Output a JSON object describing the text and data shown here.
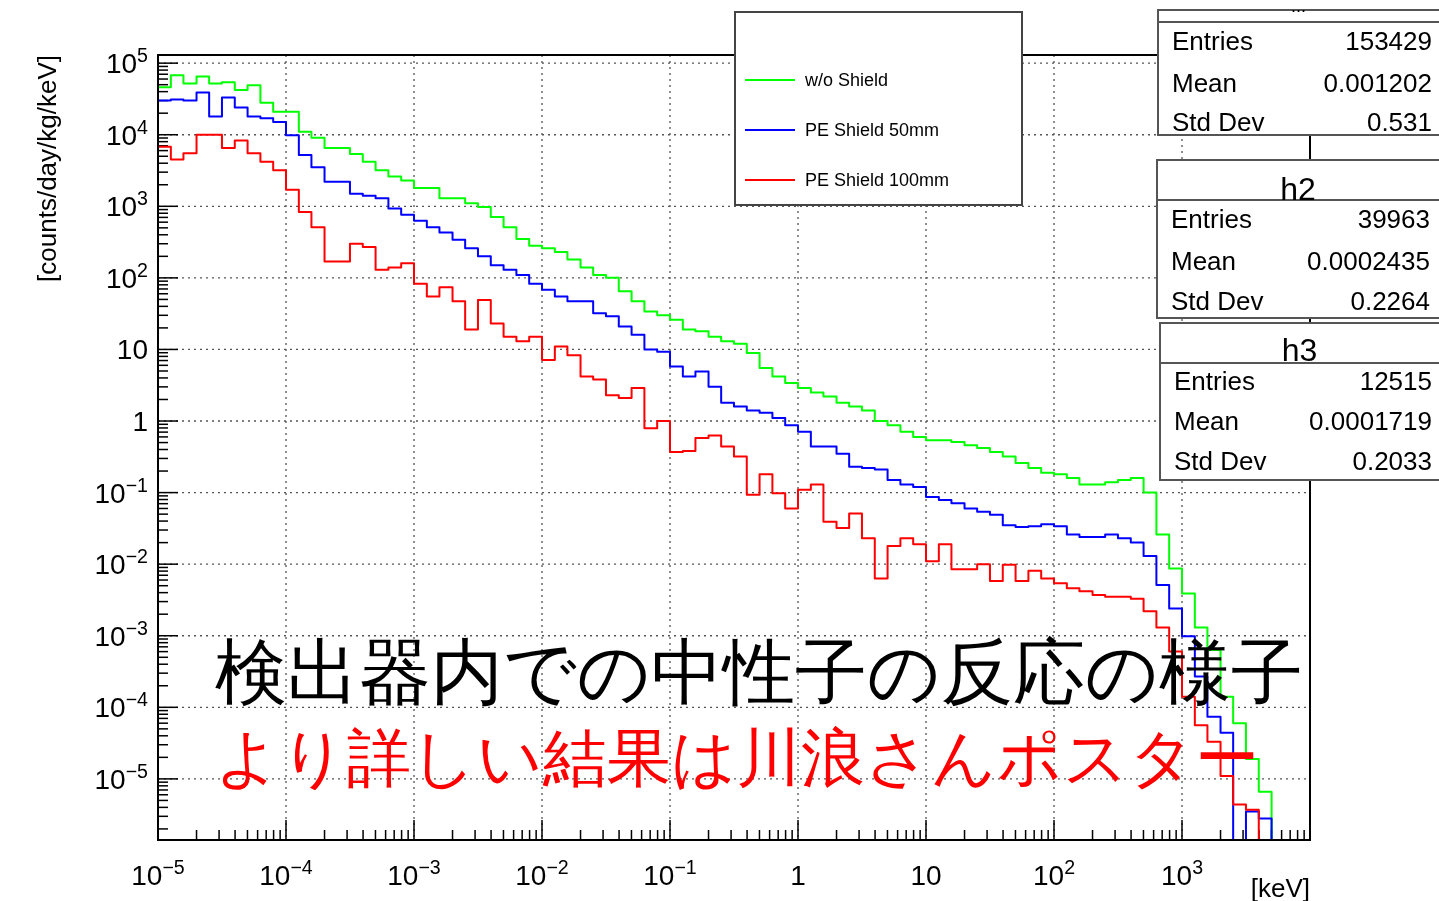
{
  "chart_data": {
    "type": "histogram",
    "log": "xy",
    "grid": true,
    "legend": "top right",
    "xlabel": "[keV]",
    "ylabel": "[counts/day/kg/keV]",
    "xlim": [
      1e-05,
      10000
    ],
    "ylim": [
      1.4e-06,
      130000
    ],
    "xticks": [
      {
        "value": 1e-05,
        "label": "10$^{−5}$"
      },
      {
        "value": 0.0001,
        "label": "10$^{−4}$"
      },
      {
        "value": 0.001,
        "label": "10$^{−3}$"
      },
      {
        "value": 0.01,
        "label": "10$^{−2}$"
      },
      {
        "value": 0.1,
        "label": "10$^{−1}$"
      },
      1,
      10,
      {
        "value": 100,
        "label": "10$^{2}$"
      },
      {
        "value": 1000,
        "label": "10$^{3}$"
      }
    ],
    "yticks": [
      {
        "value": 1e-05,
        "label": "10$^{−5}$"
      },
      {
        "value": 0.0001,
        "label": "10$^{−4}$"
      },
      {
        "value": 0.001,
        "label": "10$^{−3}$"
      },
      {
        "value": 0.01,
        "label": "10$^{−2}$"
      },
      {
        "value": 0.1,
        "label": "10$^{−1}$"
      },
      1,
      10,
      {
        "value": 100,
        "label": "10$^{2}$"
      },
      {
        "value": 1000,
        "label": "10$^{3}$"
      },
      {
        "value": 10000,
        "label": "10$^{4}$"
      },
      {
        "value": 100000,
        "label": "10$^{5}$"
      }
    ],
    "bins": [
      1e-05,
      1.26e-05,
      1.58e-05,
      2e-05,
      2.51e-05,
      3.16e-05,
      3.98e-05,
      5.01e-05,
      6.31e-05,
      7.94e-05,
      0.0001,
      0.000126,
      0.000158,
      0.0002,
      0.000251,
      0.000316,
      0.000398,
      0.000501,
      0.000631,
      0.000794,
      0.001,
      0.00126,
      0.00158,
      0.002,
      0.00251,
      0.00316,
      0.00398,
      0.00501,
      0.00631,
      0.00794,
      0.01,
      0.0126,
      0.0158,
      0.02,
      0.0251,
      0.0316,
      0.0398,
      0.0501,
      0.0631,
      0.0794,
      0.1,
      0.126,
      0.158,
      0.2,
      0.251,
      0.316,
      0.398,
      0.501,
      0.631,
      0.794,
      1,
      1.26,
      1.58,
      2,
      2.51,
      3.16,
      3.98,
      5.01,
      6.31,
      7.94,
      10,
      12.6,
      15.8,
      20,
      25.1,
      31.6,
      39.8,
      50.1,
      63.1,
      79.4,
      100,
      126,
      158,
      200,
      251,
      316,
      398,
      501,
      631,
      794,
      1000,
      1260,
      1580,
      2000,
      2510,
      3160,
      3980,
      5010
    ],
    "series": [
      {
        "name": "w/o Shield",
        "color": "#00ff00",
        "values": [
          46000,
          68000,
          52000,
          65000,
          52000,
          54000,
          42000,
          49000,
          28000,
          21000,
          21000,
          11000,
          9100,
          6500,
          6500,
          5400,
          4200,
          3200,
          2600,
          2300,
          1800,
          1800,
          1300,
          1300,
          1100,
          980,
          710,
          510,
          350,
          280,
          260,
          230,
          180,
          140,
          110,
          100,
          65,
          47,
          34,
          30,
          26,
          19,
          18,
          15,
          13,
          12,
          8.9,
          5.5,
          4.2,
          3.4,
          2.9,
          2.5,
          2.2,
          1.8,
          1.6,
          1.4,
          1.0,
          0.87,
          0.71,
          0.6,
          0.54,
          0.54,
          0.51,
          0.46,
          0.42,
          0.37,
          0.32,
          0.26,
          0.22,
          0.19,
          0.18,
          0.16,
          0.13,
          0.13,
          0.14,
          0.15,
          0.16,
          0.1,
          0.026,
          0.0087,
          0.0039,
          0.0013,
          0.00063,
          0.00014,
          6e-05,
          1.9e-05,
          6.6e-06
        ]
      },
      {
        "name": "PE Shield 50mm",
        "color": "#0000ff",
        "values": [
          30000,
          31000,
          30000,
          39000,
          18000,
          33000,
          24000,
          18000,
          17000,
          15000,
          9800,
          5200,
          3500,
          2200,
          2200,
          1500,
          1400,
          1300,
          930,
          760,
          630,
          510,
          430,
          340,
          260,
          200,
          150,
          130,
          110,
          83,
          68,
          55,
          47,
          47,
          32,
          29,
          21,
          16,
          10,
          9.3,
          5.8,
          4.2,
          4.9,
          3.0,
          1.8,
          1.6,
          1.4,
          1.3,
          1.1,
          0.87,
          0.71,
          0.44,
          0.44,
          0.35,
          0.23,
          0.22,
          0.21,
          0.15,
          0.13,
          0.12,
          0.087,
          0.079,
          0.071,
          0.06,
          0.054,
          0.049,
          0.035,
          0.033,
          0.034,
          0.036,
          0.034,
          0.026,
          0.024,
          0.024,
          0.026,
          0.023,
          0.02,
          0.013,
          0.0051,
          0.0024,
          0.00098,
          0.00027,
          7.4e-05,
          4.4e-05,
          null,
          3.5e-06,
          2.8e-06
        ]
      },
      {
        "name": "PE Shield 100mm",
        "color": "#ff0000",
        "values": [
          6800,
          4500,
          5500,
          10000,
          10000,
          6500,
          8300,
          5500,
          4200,
          3200,
          1700,
          830,
          510,
          170,
          170,
          300,
          270,
          130,
          140,
          160,
          83,
          55,
          74,
          47,
          19,
          49,
          23,
          15,
          13,
          15,
          7.1,
          11,
          8.3,
          4.2,
          3.8,
          2.3,
          2.1,
          2.9,
          0.79,
          1.0,
          0.37,
          0.38,
          0.58,
          0.63,
          0.44,
          0.32,
          0.093,
          0.18,
          0.098,
          0.06,
          0.11,
          0.13,
          0.039,
          0.032,
          0.051,
          0.023,
          0.0063,
          0.018,
          0.023,
          0.019,
          0.011,
          0.019,
          0.0085,
          0.0085,
          0.01,
          0.0058,
          0.0098,
          0.0058,
          0.0081,
          0.0063,
          0.0054,
          0.0046,
          0.0042,
          0.0037,
          0.0035,
          0.0035,
          0.0033,
          0.0022,
          0.0013,
          0.0006,
          0.00014,
          5.6e-05,
          3.3e-05,
          1.1e-05,
          4.4e-06,
          3.7e-06,
          null
        ]
      }
    ],
    "annotations": [
      "...",
      "Entries",
      "153429",
      "Mean",
      "0.001202",
      "Std Dev",
      "0.531",
      "h2",
      "Entries",
      "39963",
      "Mean",
      "0.0002435",
      "Std Dev",
      "0.2264",
      "h3",
      "Entries",
      "12515",
      "Mean",
      "0.0001719",
      "Std Dev",
      "0.2033",
      "検出器内での中性子の反応の様子",
      "より詳しい結果は川浪さんポスター"
    ]
  }
}
